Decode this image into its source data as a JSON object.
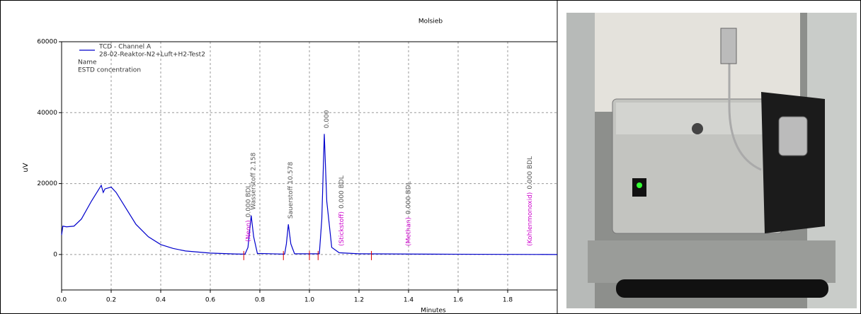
{
  "chart_data": {
    "type": "line",
    "title": "Molsieb",
    "x_label": "Minutes",
    "y_label": "uV",
    "legend_lines": [
      "28-02-Reaktor-N2+Luft+H2-Test2",
      "Name",
      "ESTD concentration"
    ],
    "x": [
      0,
      0.005,
      0.02,
      0.05,
      0.08,
      0.12,
      0.16,
      0.168,
      0.175,
      0.2,
      0.22,
      0.26,
      0.3,
      0.35,
      0.4,
      0.45,
      0.5,
      0.6,
      0.7,
      0.74,
      0.752,
      0.765,
      0.775,
      0.79,
      0.9,
      0.907,
      0.915,
      0.925,
      0.94,
      1.04,
      1.05,
      1.06,
      1.07,
      1.09,
      1.12,
      1.2,
      1.5,
      2.0
    ],
    "series": [
      {
        "name": "TCD - Channel A",
        "color": "#0000cc",
        "values": [
          5500,
          8000,
          7800,
          8000,
          10000,
          15000,
          19500,
          17500,
          18500,
          19000,
          17500,
          13000,
          8500,
          5000,
          2800,
          1700,
          1000,
          400,
          150,
          100,
          2000,
          11000,
          5000,
          300,
          100,
          3000,
          8500,
          3000,
          200,
          200,
          10000,
          34000,
          15000,
          2000,
          500,
          200,
          100,
          0
        ]
      }
    ],
    "baseline_marks": [
      0.735,
      0.895,
      1.0,
      1.035,
      1.25
    ],
    "baseline_color": "#dd0000",
    "annotations": [
      {
        "x": 0.745,
        "name": "(Neon)",
        "text": "0.000 BDL"
      },
      {
        "x": 0.765,
        "text": "Wasserstoff 2.158"
      },
      {
        "x": 0.915,
        "text": "Sauerstoff 10.578"
      },
      {
        "x": 1.06,
        "text": "0.000"
      },
      {
        "x": 1.12,
        "name": "(Stickstoff)",
        "text": "0.000 BDL"
      },
      {
        "x": 1.39,
        "name": "(Methan)",
        "text": "0.000 BDL"
      },
      {
        "x": 1.88,
        "name": "(Kohlenmonoxid)",
        "text": "0.000 BDL"
      }
    ],
    "name_color": "#cc00cc",
    "text_color": "#555555",
    "xlim": [
      0,
      2
    ],
    "ylim": [
      -10000,
      60000
    ],
    "xticks": [
      {
        "value": 0,
        "label": "0.0"
      },
      0.2,
      0.4,
      0.6,
      0.8,
      {
        "value": 1,
        "label": "1.0"
      },
      1.2,
      1.4,
      1.6,
      1.8
    ],
    "yticks": [
      0,
      20000,
      40000,
      60000
    ],
    "grid": true
  }
}
